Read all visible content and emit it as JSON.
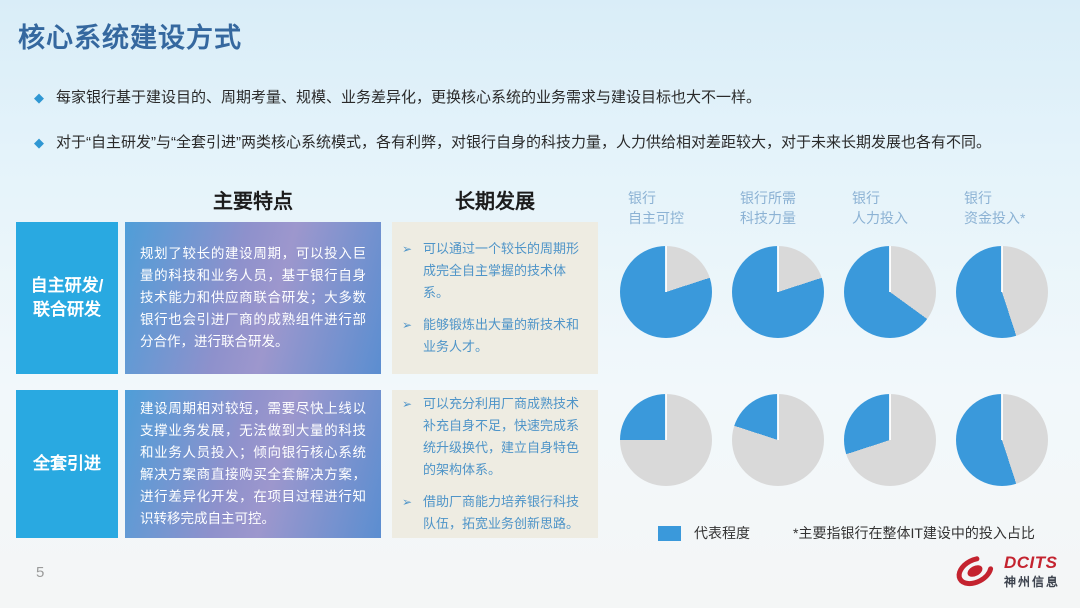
{
  "slide": {
    "title": "核心系统建设方式",
    "page_number": "5",
    "bullets": [
      "每家银行基于建设目的、周期考量、规模、业务差异化，更换核心系统的业务需求与建设目标也大不一样。",
      "对于“自主研发”与“全套引进”两类核心系统模式，各有利弊，对银行自身的科技力量，人力供给相对差距较大，对于未来长期发展也各有不同。"
    ]
  },
  "markers": {
    "diamond": "◆",
    "arrow": "➢"
  },
  "table": {
    "col_headers": [
      "主要特点",
      "长期发展"
    ],
    "rows": [
      {
        "label": "自主研发/联合研发",
        "features": "规划了较长的建设周期，可以投入巨量的科技和业务人员，基于银行自身技术能力和供应商联合研发；大多数银行也会引进厂商的成熟组件进行部分合作，进行联合研发。",
        "development": [
          "可以通过一个较长的周期形成完全自主掌握的技术体系。",
          "能够锻炼出大量的新技术和业务人才。"
        ]
      },
      {
        "label": "全套引进",
        "features": "建设周期相对较短，需要尽快上线以支撑业务发展，无法做到大量的科技和业务人员投入；倾向银行核心系统解决方案商直接购买全套解决方案，进行差异化开发，在项目过程进行知识转移完成自主可控。",
        "development": [
          "可以充分利用厂商成熟技术补充自身不足，快速完成系统升级换代，建立自身特色的架构体系。",
          "借助厂商能力培养银行科技队伍，拓宽业务创新思路。"
        ]
      }
    ]
  },
  "chart_data": {
    "type": "pie",
    "categories": [
      "银行\n自主可控",
      "银行所需\n科技力量",
      "银行\n人力投入",
      "银行\n资金投入*"
    ],
    "series": [
      {
        "name": "自主研发/联合研发",
        "values": [
          80,
          80,
          65,
          55
        ]
      },
      {
        "name": "全套引进",
        "values": [
          25,
          20,
          30,
          55
        ]
      }
    ],
    "unit": "percent-filled",
    "legend": "代表程度",
    "note": "*主要指银行在整体IT建设中的投入占比",
    "colors": {
      "filled": "#3a99db",
      "empty": "#d9d9d9"
    }
  },
  "footer": {
    "logo_text": "DCITS",
    "logo_subtext": "神州信息"
  }
}
